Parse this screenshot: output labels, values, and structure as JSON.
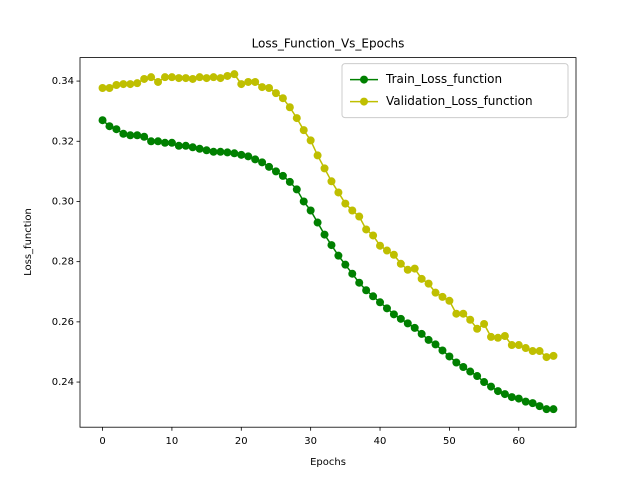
{
  "chart_data": {
    "type": "line",
    "title": "Loss_Function_Vs_Epochs",
    "xlabel": "Epochs",
    "ylabel": "Loss_function",
    "x": [
      0,
      1,
      2,
      3,
      4,
      5,
      6,
      7,
      8,
      9,
      10,
      11,
      12,
      13,
      14,
      15,
      16,
      17,
      18,
      19,
      20,
      21,
      22,
      23,
      24,
      25,
      26,
      27,
      28,
      29,
      30,
      31,
      32,
      33,
      34,
      35,
      36,
      37,
      38,
      39,
      40,
      41,
      42,
      43,
      44,
      45,
      46,
      47,
      48,
      49,
      50,
      51,
      52,
      53,
      54,
      55,
      56,
      57,
      58,
      59,
      60,
      61,
      62,
      63,
      64,
      65
    ],
    "series": [
      {
        "name": "Train_Loss_function",
        "color": "#008000",
        "values": [
          0.327,
          0.325,
          0.324,
          0.3225,
          0.322,
          0.322,
          0.3215,
          0.32,
          0.32,
          0.3195,
          0.3195,
          0.3185,
          0.3185,
          0.318,
          0.3175,
          0.317,
          0.3165,
          0.3165,
          0.3163,
          0.316,
          0.3155,
          0.315,
          0.314,
          0.313,
          0.3115,
          0.31,
          0.3085,
          0.3065,
          0.304,
          0.3,
          0.297,
          0.293,
          0.289,
          0.2855,
          0.282,
          0.279,
          0.276,
          0.273,
          0.2705,
          0.2685,
          0.2665,
          0.2645,
          0.2625,
          0.261,
          0.2595,
          0.258,
          0.256,
          0.254,
          0.2525,
          0.2505,
          0.2485,
          0.2465,
          0.245,
          0.2435,
          0.242,
          0.24,
          0.2385,
          0.237,
          0.236,
          0.235,
          0.2345,
          0.2335,
          0.233,
          0.232,
          0.231,
          0.231
        ]
      },
      {
        "name": "Validation_Loss_function",
        "color": "#bfbf00",
        "values": [
          0.3377,
          0.3377,
          0.3387,
          0.339,
          0.339,
          0.3393,
          0.3407,
          0.3413,
          0.3397,
          0.3413,
          0.3413,
          0.341,
          0.341,
          0.3407,
          0.3413,
          0.341,
          0.3413,
          0.341,
          0.3417,
          0.3423,
          0.339,
          0.3397,
          0.3397,
          0.338,
          0.3377,
          0.336,
          0.3343,
          0.3313,
          0.3277,
          0.3237,
          0.3203,
          0.3153,
          0.311,
          0.3067,
          0.303,
          0.2993,
          0.297,
          0.295,
          0.2907,
          0.2887,
          0.2853,
          0.2837,
          0.2823,
          0.2793,
          0.2773,
          0.2777,
          0.2743,
          0.2727,
          0.2697,
          0.2683,
          0.267,
          0.2627,
          0.2627,
          0.2607,
          0.2577,
          0.2593,
          0.255,
          0.2547,
          0.2553,
          0.2523,
          0.2523,
          0.2513,
          0.2503,
          0.2503,
          0.2483,
          0.2487
        ]
      }
    ],
    "xlim": [
      -3.25,
      68.25
    ],
    "xticks": [
      0,
      10,
      20,
      30,
      40,
      50,
      60
    ],
    "ylim": [
      0.225,
      0.3478
    ],
    "yticks": [
      0.24,
      0.26,
      0.28,
      {
        "value": 0.3,
        "label": "0.30"
      },
      0.32,
      0.34
    ],
    "legend": "upper right",
    "grid": false
  }
}
